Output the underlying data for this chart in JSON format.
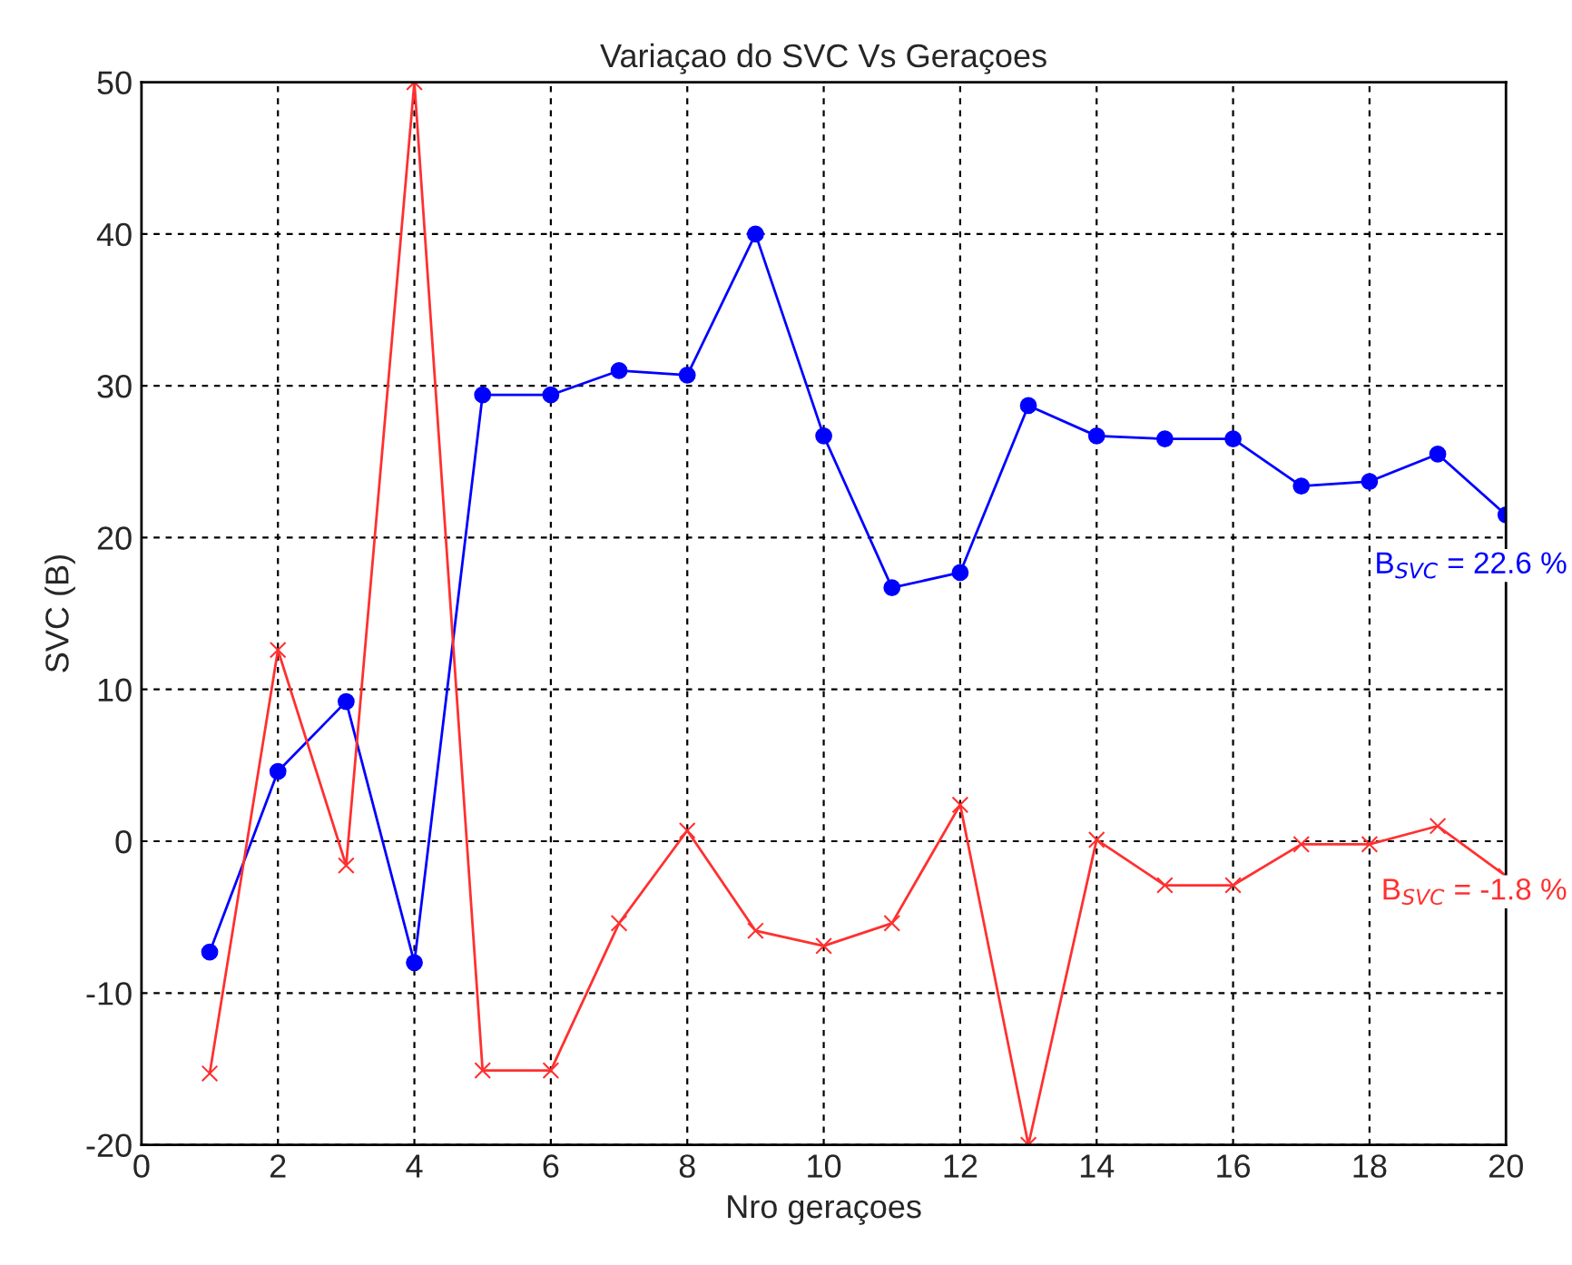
{
  "chart_data": {
    "type": "line",
    "title": "Variaçao do SVC Vs Geraçoes",
    "xlabel": "Nro geraçoes",
    "ylabel": "SVC (B)",
    "x": [
      1,
      2,
      3,
      4,
      5,
      6,
      7,
      8,
      9,
      10,
      11,
      12,
      13,
      14,
      15,
      16,
      17,
      18,
      19,
      20
    ],
    "series": [
      {
        "color": "#0000ff",
        "marker": "circle",
        "values": [
          -7.3,
          4.6,
          9.2,
          -8,
          29.4,
          29.4,
          31,
          30.7,
          40,
          26.7,
          16.7,
          17.7,
          28.7,
          26.7,
          26.5,
          26.5,
          23.4,
          23.7,
          25.5,
          21.5
        ]
      },
      {
        "color": "#ff3030",
        "marker": "cross",
        "values": [
          -15.3,
          12.6,
          -1.6,
          50,
          -15.1,
          -15.1,
          -5.4,
          0.7,
          -5.9,
          -6.9,
          -5.4,
          2.4,
          -20,
          0.1,
          -2.9,
          -2.9,
          -0.2,
          -0.2,
          1,
          -2.3
        ]
      }
    ],
    "annotations": [
      "B$_{SVC}$ = 22.6 %",
      "B$_{SVC}$ = -1.8 %"
    ],
    "xlim": [
      0,
      20
    ],
    "xticks": [
      0,
      2,
      4,
      6,
      8,
      10,
      12,
      14,
      16,
      18,
      20
    ],
    "ylim": [
      -20,
      50
    ],
    "yticks": [
      -20,
      -10,
      0,
      10,
      20,
      30,
      40,
      50
    ],
    "grid": true,
    "line_style": "solid"
  }
}
